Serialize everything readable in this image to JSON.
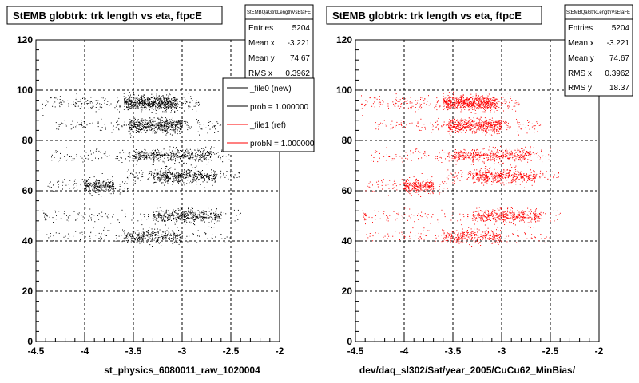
{
  "chart_data": [
    {
      "type": "scatter",
      "title": "StEMB globtrk: trk length vs eta, ftpcE",
      "xlabel": "st_physics_6080011_raw_1020004",
      "ylabel": "",
      "xlim": [
        -4.5,
        -2
      ],
      "ylim": [
        0,
        120
      ],
      "xticks": [
        "-4.5",
        "-4",
        "-3.5",
        "-3",
        "-2.5",
        "-2"
      ],
      "yticks": [
        "0",
        "20",
        "40",
        "60",
        "80",
        "100",
        "120"
      ],
      "grid": true,
      "color": "#000000",
      "stats": {
        "name": "StEMBQaGtrkLengthVsEtaFE",
        "rows": [
          {
            "label": "Entries",
            "value": "5204"
          },
          {
            "label": "Mean x",
            "value": "-3.221"
          },
          {
            "label": "Mean y",
            "value": "74.67"
          },
          {
            "label": "RMS x",
            "value": "0.3962"
          }
        ]
      },
      "legend": {
        "placement": "top-right",
        "entries": [
          {
            "label": "_file0 (new)",
            "color": "#000000"
          },
          {
            "label": "prob = 1.000000",
            "color": "#000000"
          },
          {
            "label": "_file1 (ref)",
            "color": "#ff0000"
          },
          {
            "label": "probN = 1.000000",
            "color": "#ff0000"
          }
        ]
      },
      "bands": [
        {
          "y": 95,
          "x_min": -4.45,
          "x_max": -2.82,
          "dense_min": -3.6,
          "dense_max": -3.05,
          "weight": 0.95
        },
        {
          "y": 86,
          "x_min": -4.3,
          "x_max": -2.6,
          "dense_min": -3.55,
          "dense_max": -3.0,
          "weight": 0.75
        },
        {
          "y": 74,
          "x_min": -4.35,
          "x_max": -2.5,
          "dense_min": -3.5,
          "dense_max": -2.7,
          "weight": 0.65
        },
        {
          "y": 66,
          "x_min": -3.6,
          "x_max": -2.4,
          "dense_min": -3.3,
          "dense_max": -2.65,
          "weight": 0.6
        },
        {
          "y": 62,
          "x_min": -4.4,
          "x_max": -3.55,
          "dense_min": -4.0,
          "dense_max": -3.7,
          "weight": 0.35
        },
        {
          "y": 50,
          "x_min": -4.45,
          "x_max": -2.4,
          "dense_min": -3.3,
          "dense_max": -2.6,
          "weight": 0.6
        },
        {
          "y": 42,
          "x_min": -4.4,
          "x_max": -2.5,
          "dense_min": -3.6,
          "dense_max": -3.0,
          "weight": 0.45
        }
      ]
    },
    {
      "type": "scatter",
      "title": "StEMB globtrk: trk length vs eta, ftpcE",
      "xlabel": "dev/daq_sl302/Sat/year_2005/CuCu62_MinBias/",
      "ylabel": "",
      "xlim": [
        -4.5,
        -2
      ],
      "ylim": [
        0,
        120
      ],
      "xticks": [
        "-4.5",
        "-4",
        "-3.5",
        "-3",
        "-2.5",
        "-2"
      ],
      "yticks": [
        "0",
        "20",
        "40",
        "60",
        "80",
        "100",
        "120"
      ],
      "grid": true,
      "color": "#ff0000",
      "stats": {
        "name": "StEMBQaGtrkLengthVsEtaFE",
        "rows": [
          {
            "label": "Entries",
            "value": "5204"
          },
          {
            "label": "Mean x",
            "value": "-3.221"
          },
          {
            "label": "Mean y",
            "value": "74.67"
          },
          {
            "label": "RMS x",
            "value": "0.3962"
          },
          {
            "label": "RMS y",
            "value": "18.37"
          }
        ]
      },
      "bands": [
        {
          "y": 95,
          "x_min": -4.45,
          "x_max": -2.82,
          "dense_min": -3.6,
          "dense_max": -3.05,
          "weight": 0.95
        },
        {
          "y": 86,
          "x_min": -4.3,
          "x_max": -2.6,
          "dense_min": -3.55,
          "dense_max": -3.0,
          "weight": 0.75
        },
        {
          "y": 74,
          "x_min": -4.35,
          "x_max": -2.5,
          "dense_min": -3.5,
          "dense_max": -2.7,
          "weight": 0.65
        },
        {
          "y": 66,
          "x_min": -3.6,
          "x_max": -2.4,
          "dense_min": -3.3,
          "dense_max": -2.65,
          "weight": 0.6
        },
        {
          "y": 62,
          "x_min": -4.4,
          "x_max": -3.55,
          "dense_min": -4.0,
          "dense_max": -3.7,
          "weight": 0.35
        },
        {
          "y": 50,
          "x_min": -4.45,
          "x_max": -2.4,
          "dense_min": -3.3,
          "dense_max": -2.6,
          "weight": 0.6
        },
        {
          "y": 42,
          "x_min": -4.4,
          "x_max": -2.5,
          "dense_min": -3.6,
          "dense_max": -3.0,
          "weight": 0.45
        }
      ]
    }
  ]
}
